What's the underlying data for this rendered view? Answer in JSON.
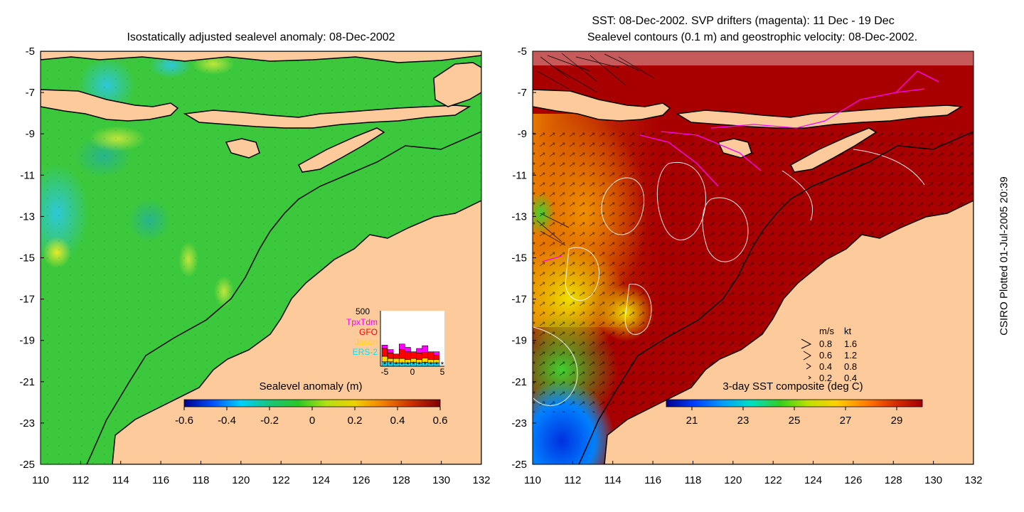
{
  "left_panel": {
    "title": "Isostatically adjusted sealevel anomaly: 08-Dec-2002",
    "colorbar": {
      "label": "Sealevel anomaly (m)",
      "ticks": [
        "-0.6",
        "-0.4",
        "-0.2",
        "0",
        "0.2",
        "0.4",
        "0.6"
      ],
      "range": [
        -0.6,
        0.6
      ],
      "colors": [
        "#00008f",
        "#0050ff",
        "#00d0ff",
        "#14c878",
        "#28c828",
        "#b4e014",
        "#f0d000",
        "#f08000",
        "#c83000",
        "#800000"
      ]
    },
    "inset": {
      "ymax_label": "500",
      "x_ticks": [
        "-5",
        "0",
        "5"
      ],
      "missions": [
        {
          "name": "TpxTdm",
          "color": "#ff00ff"
        },
        {
          "name": "GFO",
          "color": "#ff0000"
        },
        {
          "name": "Jason",
          "color": "#ffd700"
        },
        {
          "name": "ERS-2",
          "color": "#00e5ff"
        }
      ],
      "bars": [
        {
          "day": -5,
          "ers2": 40,
          "jason": 50,
          "gfo": 70,
          "tpx": 30
        },
        {
          "day": -4,
          "ers2": 40,
          "jason": 30,
          "gfo": 50,
          "tpx": 30
        },
        {
          "day": -3,
          "ers2": 30,
          "jason": 40,
          "gfo": 40,
          "tpx": 0
        },
        {
          "day": -2,
          "ers2": 30,
          "jason": 40,
          "gfo": 80,
          "tpx": 50
        },
        {
          "day": -1,
          "ers2": 30,
          "jason": 30,
          "gfo": 70,
          "tpx": 40
        },
        {
          "day": 0,
          "ers2": 35,
          "jason": 35,
          "gfo": 60,
          "tpx": 0
        },
        {
          "day": 1,
          "ers2": 30,
          "jason": 30,
          "gfo": 60,
          "tpx": 40
        },
        {
          "day": 2,
          "ers2": 35,
          "jason": 40,
          "gfo": 50,
          "tpx": 60
        },
        {
          "day": 3,
          "ers2": 30,
          "jason": 30,
          "gfo": 70,
          "tpx": 0
        },
        {
          "day": 4,
          "ers2": 30,
          "jason": 30,
          "gfo": 40,
          "tpx": 30
        }
      ]
    }
  },
  "right_panel": {
    "title_line1": "SST: 08-Dec-2002. SVP drifters (magenta): 11 Dec - 19 Dec",
    "title_line2": "Sealevel contours (0.1 m) and geostrophic velocity: 08-Dec-2002.",
    "colorbar": {
      "label": "3-day SST composite (deg C)",
      "ticks": [
        "21",
        "23",
        "25",
        "27",
        "29"
      ],
      "range": [
        20,
        30
      ],
      "colors": [
        "#00008f",
        "#0040ff",
        "#00a0ff",
        "#00e0c0",
        "#30d020",
        "#c0e000",
        "#ffd000",
        "#ff8000",
        "#d83000",
        "#a00000"
      ]
    },
    "legend": {
      "header_ms": "m/s",
      "header_kt": "kt",
      "rows": [
        {
          "ms": "0.8",
          "kt": "1.6"
        },
        {
          "ms": "0.6",
          "kt": "1.2"
        },
        {
          "ms": "0.4",
          "kt": "0.8"
        },
        {
          "ms": "0.2",
          "kt": "0.4"
        }
      ]
    }
  },
  "axes": {
    "lat_labels": [
      "-5",
      "-7",
      "-9",
      "-11",
      "-13",
      "-15",
      "-17",
      "-19",
      "-21",
      "-23",
      "-25"
    ],
    "lon_labels": [
      "110",
      "112",
      "114",
      "116",
      "118",
      "120",
      "122",
      "124",
      "126",
      "128",
      "130",
      "132"
    ],
    "lat_range": [
      -25,
      -5
    ],
    "lon_range": [
      110,
      132
    ]
  },
  "credit": "CSIRO Plotted 01-Jul-2005 20:39",
  "colors": {
    "land": "#fdca9b",
    "sla_background": "#3cc83c",
    "sst_background": "#a80000",
    "coast": "#000000"
  }
}
